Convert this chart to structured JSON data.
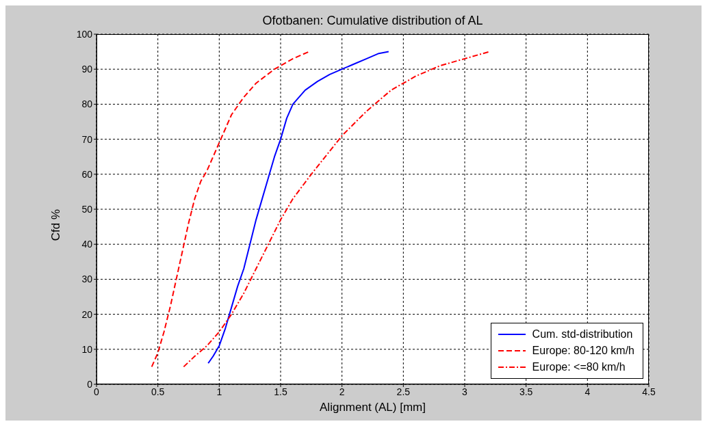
{
  "chart_data": {
    "type": "line",
    "title": "Ofotbanen: Cumulative distribution of AL",
    "xlabel": "Alignment (AL) [mm]",
    "ylabel": "Cfd %",
    "xlim": [
      0,
      4.5
    ],
    "xticks": [
      0,
      0.5,
      1,
      1.5,
      2,
      2.5,
      3,
      3.5,
      4,
      4.5
    ],
    "ylim": [
      0,
      100
    ],
    "yticks": [
      0,
      10,
      20,
      30,
      40,
      50,
      60,
      70,
      80,
      90,
      100
    ],
    "grid": true,
    "legend": "bottom right",
    "marker": "none",
    "series": [
      {
        "name": "Cum. std-distribution",
        "color": "#0000ff",
        "line_style": "solid",
        "x": [
          0.91,
          0.95,
          1.0,
          1.05,
          1.1,
          1.15,
          1.2,
          1.25,
          1.3,
          1.35,
          1.4,
          1.45,
          1.5,
          1.55,
          1.6,
          1.7,
          1.8,
          1.9,
          2.0,
          2.1,
          2.2,
          2.3,
          2.38
        ],
        "values": [
          6,
          8,
          11,
          16,
          22,
          28,
          33,
          40,
          47,
          53,
          59,
          65,
          70,
          76,
          80,
          84,
          86.5,
          88.5,
          90,
          91.5,
          93,
          94.5,
          95
        ]
      },
      {
        "name": "Europe: 80-120 km/h",
        "color": "#ff0000",
        "line_style": "dashed",
        "x": [
          0.45,
          0.5,
          0.55,
          0.6,
          0.65,
          0.7,
          0.75,
          0.8,
          0.85,
          0.9,
          0.95,
          1.0,
          1.05,
          1.1,
          1.2,
          1.3,
          1.45,
          1.6,
          1.73
        ],
        "values": [
          5,
          9,
          15,
          22,
          30,
          38,
          46,
          53,
          58,
          61,
          65,
          69,
          73,
          77,
          82,
          86,
          90,
          93,
          95
        ]
      },
      {
        "name": "Europe: <=80 km/h",
        "color": "#ff0000",
        "line_style": "dashdot",
        "x": [
          0.71,
          0.8,
          0.9,
          1.0,
          1.1,
          1.2,
          1.3,
          1.4,
          1.5,
          1.6,
          1.75,
          2.0,
          2.2,
          2.4,
          2.6,
          2.8,
          3.0,
          3.2
        ],
        "values": [
          5,
          8,
          11,
          15,
          20,
          26,
          33,
          40,
          47,
          53,
          60,
          71,
          78,
          84,
          88,
          91,
          93,
          95
        ]
      }
    ]
  }
}
